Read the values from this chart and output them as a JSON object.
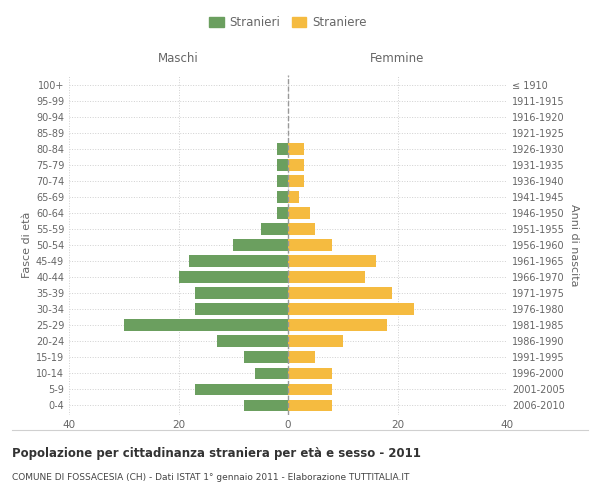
{
  "age_groups": [
    "0-4",
    "5-9",
    "10-14",
    "15-19",
    "20-24",
    "25-29",
    "30-34",
    "35-39",
    "40-44",
    "45-49",
    "50-54",
    "55-59",
    "60-64",
    "65-69",
    "70-74",
    "75-79",
    "80-84",
    "85-89",
    "90-94",
    "95-99",
    "100+"
  ],
  "birth_years": [
    "2006-2010",
    "2001-2005",
    "1996-2000",
    "1991-1995",
    "1986-1990",
    "1981-1985",
    "1976-1980",
    "1971-1975",
    "1966-1970",
    "1961-1965",
    "1956-1960",
    "1951-1955",
    "1946-1950",
    "1941-1945",
    "1936-1940",
    "1931-1935",
    "1926-1930",
    "1921-1925",
    "1916-1920",
    "1911-1915",
    "≤ 1910"
  ],
  "males": [
    8,
    17,
    6,
    8,
    13,
    30,
    17,
    17,
    20,
    18,
    10,
    5,
    2,
    2,
    2,
    2,
    2,
    0,
    0,
    0,
    0
  ],
  "females": [
    8,
    8,
    8,
    5,
    10,
    18,
    23,
    19,
    14,
    16,
    8,
    5,
    4,
    2,
    3,
    3,
    3,
    0,
    0,
    0,
    0
  ],
  "male_color": "#6b9f5f",
  "female_color": "#f5bb40",
  "title": "Popolazione per cittadinanza straniera per età e sesso - 2011",
  "subtitle": "COMUNE DI FOSSACESIA (CH) - Dati ISTAT 1° gennaio 2011 - Elaborazione TUTTITALIA.IT",
  "legend_male": "Stranieri",
  "legend_female": "Straniere",
  "header_left": "Maschi",
  "header_right": "Femmine",
  "ylabel_left": "Fasce di età",
  "ylabel_right": "Anni di nascita",
  "xlim": 40,
  "bg_color": "#ffffff",
  "grid_color": "#d0d0d0",
  "text_color": "#666666",
  "zero_line_color": "#999999"
}
